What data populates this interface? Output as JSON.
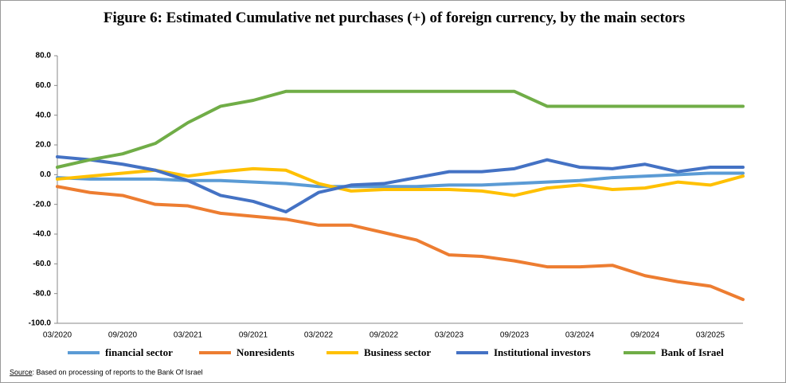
{
  "chart_data": {
    "type": "line",
    "title": "Figure 6:  Estimated Cumulative net purchases (+) of foreign currency, by the main sectors",
    "categories": [
      "03/2020",
      null,
      "09/2020",
      null,
      "03/2021",
      null,
      "09/2021",
      null,
      "03/2022",
      null,
      "09/2022",
      null,
      "03/2023",
      null,
      "09/2023",
      null,
      "03/2024",
      null,
      "09/2024",
      null,
      "03/2025",
      null
    ],
    "ylim": [
      -100,
      80
    ],
    "yticks": [
      {
        "value": -100,
        "label": "-100.0"
      },
      {
        "value": -80,
        "label": "-80.0"
      },
      {
        "value": -60,
        "label": "-60.0"
      },
      {
        "value": -40,
        "label": "-40.0"
      },
      {
        "value": -20,
        "label": "-20.0"
      },
      {
        "value": 0,
        "label": "0.0"
      },
      {
        "value": 20,
        "label": "20.0"
      },
      {
        "value": 40,
        "label": "40.0"
      },
      {
        "value": 60,
        "label": "60.0"
      },
      {
        "value": 80,
        "label": "80.0"
      }
    ],
    "grid": false,
    "legend": "bottom",
    "series": [
      {
        "name": "financial sector",
        "color": "#5b9bd5",
        "values": [
          -2,
          -3,
          -3,
          -3,
          -4,
          -4,
          -5,
          -6,
          -8,
          -8,
          -8,
          -8,
          -7,
          -7,
          -6,
          -5,
          -4,
          -2,
          -1,
          0,
          1,
          1
        ]
      },
      {
        "name": "Nonresidents",
        "color": "#ed7d31",
        "values": [
          -8,
          -12,
          -14,
          -20,
          -21,
          -26,
          -28,
          -30,
          -34,
          -34,
          -39,
          -44,
          -54,
          -55,
          -58,
          -62,
          -62,
          -61,
          -68,
          -72,
          -75,
          -84
        ]
      },
      {
        "name": "Business sector",
        "color": "#ffc000",
        "values": [
          -3,
          -1,
          1,
          3,
          -1,
          2,
          4,
          3,
          -6,
          -11,
          -10,
          -10,
          -10,
          -11,
          -14,
          -9,
          -7,
          -10,
          -9,
          -5,
          -7,
          -1
        ]
      },
      {
        "name": "Institutional investors",
        "color": "#4472c4",
        "values": [
          12,
          10,
          7,
          3,
          -4,
          -14,
          -18,
          -25,
          -12,
          -7,
          -6,
          -2,
          2,
          2,
          4,
          10,
          5,
          4,
          7,
          2,
          5,
          5
        ]
      },
      {
        "name": "Bank of Israel",
        "color": "#70ad47",
        "values": [
          5,
          10,
          14,
          21,
          35,
          46,
          50,
          56,
          56,
          56,
          56,
          56,
          56,
          56,
          56,
          46,
          46,
          46,
          46,
          46,
          46,
          46
        ]
      }
    ],
    "source_label": "Source",
    "source_text": ":  Based on processing  of reports  to the Bank Of Israel"
  }
}
